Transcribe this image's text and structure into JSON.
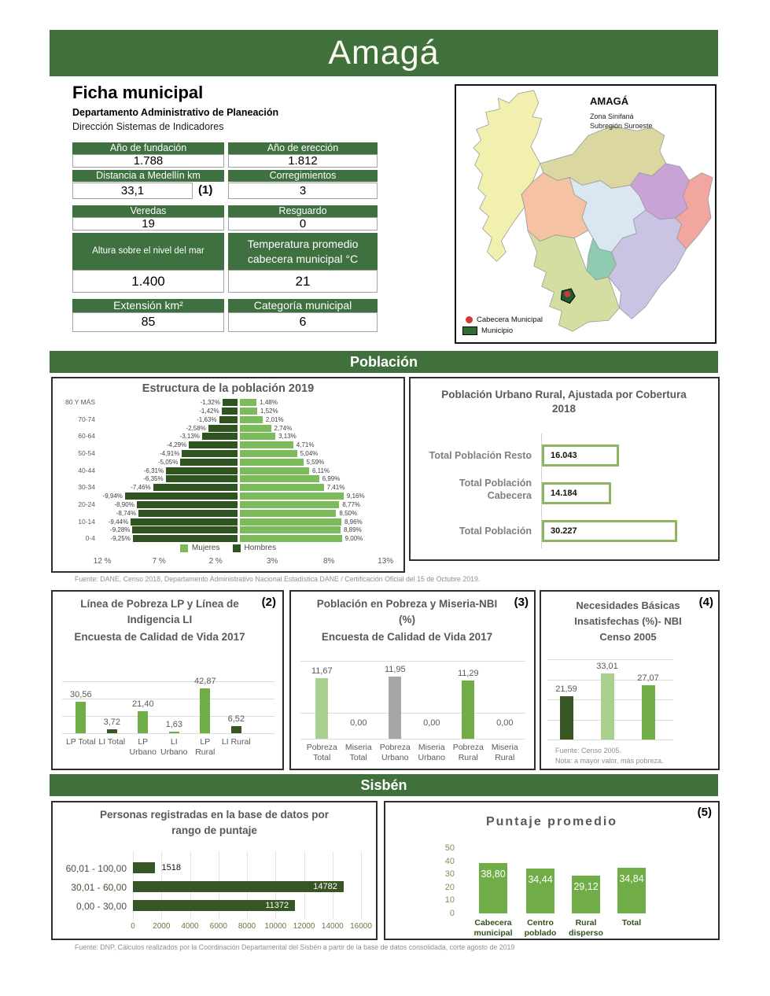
{
  "header": {
    "title": "Amagá"
  },
  "ficha": {
    "title": "Ficha municipal",
    "subtitle_bold": "Departamento Administrativo de Planeación",
    "subtitle": "Dirección Sistemas de Indicadores",
    "note": "(1)",
    "cells": [
      {
        "label": "Año de fundación",
        "value": "1.788"
      },
      {
        "label": "Año de erección",
        "value": "1.812"
      },
      {
        "label": "Distancia a Medellín km",
        "value": "33,1"
      },
      {
        "label": "Corregimientos",
        "value": "3"
      },
      {
        "label": "Veredas",
        "value": "19"
      },
      {
        "label": "Resguardo",
        "value": "0"
      },
      {
        "label": "Altura sobre el nivel del mar",
        "value": "1.400"
      },
      {
        "label": "Temperatura promedio cabecera municipal °C",
        "value": "21"
      },
      {
        "label": "Extensión km²",
        "value": "85"
      },
      {
        "label": "Categoría municipal",
        "value": "6"
      }
    ]
  },
  "map": {
    "title": "AMAGÁ",
    "zona": "Zona Sinifaná",
    "subregion": "Subregión Suroeste",
    "legend": [
      {
        "label": "Cabecera Municipal",
        "marker": "red-dot",
        "color": "#D13A30"
      },
      {
        "label": "Municipio",
        "marker": "green-rect",
        "color": "#2F6B33"
      }
    ]
  },
  "sections": {
    "poblacion": "Población",
    "sisben": "Sisbén"
  },
  "sources": {
    "poblacion": "Fuente: DANE, Censo 2018, Departamento Administrativo Nacional Estadística DANE / Certificación Oficial del 15 de Octubre 2019.",
    "sisben": "Fuente:  DNP, Cálculos realizados por la Coordinación Departamental del Sisbén a partir de la base de datos consolidada, corte agosto de 2019"
  },
  "chart_data": [
    {
      "id": "population_pyramid",
      "type": "bar",
      "orientation": "pyramid",
      "title": "Estructura de la población 2019",
      "axis_labels_top_to_bottom": [
        "80 Y MÁS",
        "70-74",
        "60-64",
        "50-54",
        "40-44",
        "30-34",
        "20-24",
        "10-14",
        "0-4"
      ],
      "hombres_labels": [
        "-1,32%",
        "-1,42%",
        "-1,63%",
        "-2,58%",
        "-3,13%",
        "-4,29%",
        "-4,91%",
        "-5,05%",
        "-6,31%",
        "-6,35%",
        "-7,46%",
        "-9,94%",
        "-8,90%",
        "-8,74%",
        "-9,44%",
        "-9,28%",
        "-9,25%"
      ],
      "mujeres_labels": [
        "1,48%",
        "1,52%",
        "2,01%",
        "2,74%",
        "3,13%",
        "4,71%",
        "5,04%",
        "5,59%",
        "6,11%",
        "6,99%",
        "7,41%",
        "9,16%",
        "8,77%",
        "8,50%",
        "8,96%",
        "8,89%",
        "9,00%"
      ],
      "x_ticks": [
        "12 %",
        "7 %",
        "2 %",
        "3%",
        "8%",
        "13%"
      ],
      "x_tick_values": [
        -12,
        -7,
        -2,
        3,
        8,
        13
      ],
      "legend": [
        {
          "label": "Mujeres",
          "color": "#7CBB5C"
        },
        {
          "label": "Hombres",
          "color": "#2F5420"
        }
      ]
    },
    {
      "id": "urbano_rural",
      "type": "bar",
      "orientation": "horizontal",
      "title": "Población Urbano Rural, Ajustada por Cobertura 2018",
      "categories": [
        "Total Población Resto",
        "Total Población Cabecera",
        "Total Población"
      ],
      "values": [
        16043,
        14184,
        30227
      ],
      "labels": [
        "16.043",
        "14.184",
        "30.227"
      ],
      "bar_border_color": "#8DB560"
    },
    {
      "id": "lp_li",
      "marker": "(2)",
      "type": "bar",
      "title_lines": [
        "Línea de Pobreza LP y Línea de",
        "Indigencia LI"
      ],
      "subtitle": "Encuesta de Calidad de Vida 2017",
      "categories": [
        "LP Total",
        "LI Total",
        "LP\nUrbano",
        "LI\nUrbano",
        "LP\nRural",
        "LI Rural"
      ],
      "values": [
        30.56,
        3.72,
        21.4,
        1.63,
        42.87,
        6.52
      ],
      "labels": [
        "30,56",
        "3,72",
        "21,40",
        "1,63",
        "42,87",
        "6,52"
      ],
      "colors": [
        "#6FAD47",
        "#375623",
        "#6FAD47",
        "#6FAD47",
        "#6FAD47",
        "#375623"
      ],
      "ylim": [
        0,
        50
      ]
    },
    {
      "id": "pobreza_miseria_nbi",
      "marker": "(3)",
      "type": "bar",
      "title_lines": [
        "Población en Pobreza y Miseria-NBI",
        "(%)"
      ],
      "subtitle": "Encuesta de Calidad de Vida 2017",
      "categories": [
        "Pobreza\nTotal",
        "Miseria\nTotal",
        "Pobreza\nUrbano",
        "Miseria\nUrbano",
        "Pobreza\nRural",
        "Miseria\nRural"
      ],
      "values": [
        11.67,
        0,
        11.95,
        0,
        11.29,
        0
      ],
      "labels": [
        "11,67",
        "0,00",
        "11,95",
        "0,00",
        "11,29",
        "0,00"
      ],
      "colors": [
        "#A9D08E",
        "#375623",
        "#A6A6A6",
        "#375623",
        "#70AD47",
        "#375623"
      ],
      "ylim": [
        0,
        15
      ]
    },
    {
      "id": "nbi_censo_2005",
      "marker": "(4)",
      "type": "bar",
      "title_lines": [
        "Necesidades Básicas",
        "Insatisfechas (%)- NBI",
        "Censo 2005"
      ],
      "values": [
        21.59,
        33.01,
        27.07
      ],
      "labels": [
        "21,59",
        "33,01",
        "27,07"
      ],
      "colors": [
        "#375623",
        "#A9D08E",
        "#70AD47"
      ],
      "ylim": [
        0,
        40
      ],
      "footnotes": [
        "Fuente: Censo 2005.",
        "Nota: a mayor valor, más pobreza."
      ]
    },
    {
      "id": "sisben_rangos",
      "type": "bar",
      "orientation": "horizontal",
      "title_lines": [
        "Personas registradas en la base de datos por",
        "rango de puntaje"
      ],
      "categories": [
        "60,01 - 100,00",
        "30,01 - 60,00",
        "0,00 - 30,00"
      ],
      "values": [
        1518,
        14782,
        11372
      ],
      "x_ticks": [
        0,
        2000,
        4000,
        6000,
        8000,
        10000,
        12000,
        14000,
        16000
      ],
      "xlim": [
        0,
        16000
      ],
      "bar_color": "#375623"
    },
    {
      "id": "puntaje_promedio",
      "marker": "(5)",
      "type": "bar",
      "title": "Puntaje promedio",
      "categories": [
        "Cabecera\nmunicipal",
        "Centro\npoblado",
        "Rural\ndisperso",
        "Total"
      ],
      "values": [
        38.8,
        34.44,
        29.12,
        34.84
      ],
      "labels": [
        "38,80",
        "34,44",
        "29,12",
        "34,84"
      ],
      "y_ticks": [
        0,
        10,
        20,
        30,
        40,
        50
      ],
      "ylim": [
        0,
        50
      ],
      "color": "#70AD47"
    }
  ]
}
